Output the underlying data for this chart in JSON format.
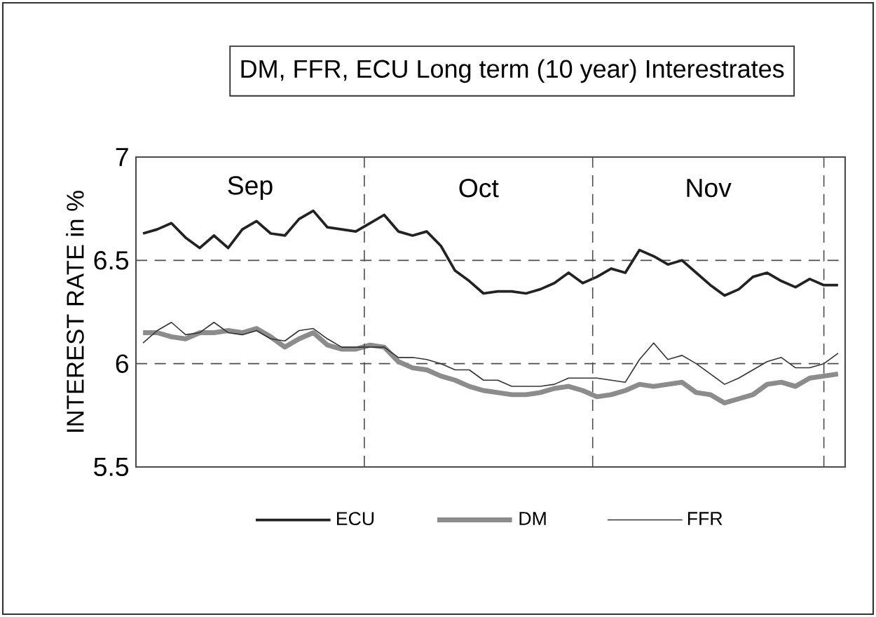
{
  "chart_data": {
    "type": "line",
    "title": "DM, FFR, ECU Long term (10 year) Interestrates",
    "ylabel": "INTEREST RATE in %",
    "categories": [
      null,
      null,
      null,
      null,
      null,
      null,
      null,
      null,
      null,
      null,
      null,
      null,
      null,
      null,
      null,
      null,
      null,
      null,
      null,
      null,
      null,
      null,
      null,
      null,
      null,
      null,
      null,
      null,
      null,
      null,
      null,
      null,
      null,
      null,
      null,
      null,
      null,
      null,
      null,
      null,
      null,
      null,
      null,
      null,
      null,
      null,
      null,
      null,
      null,
      null
    ],
    "ylim": [
      5.5,
      7
    ],
    "yticks": [
      5.5,
      6,
      6.5,
      7
    ],
    "tick_labels": "y",
    "grid": "y",
    "legend": "bottom",
    "annotations": [
      "Sep",
      "Oct",
      "Nov"
    ],
    "series": [
      {
        "name": "ECU",
        "color": "#222222",
        "values": [
          6.63,
          6.65,
          6.68,
          6.61,
          6.56,
          6.62,
          6.56,
          6.65,
          6.69,
          6.63,
          6.62,
          6.7,
          6.74,
          6.66,
          6.65,
          6.64,
          6.68,
          6.72,
          6.64,
          6.62,
          6.64,
          6.57,
          6.45,
          6.4,
          6.34,
          6.35,
          6.35,
          6.34,
          6.36,
          6.39,
          6.44,
          6.39,
          6.42,
          6.46,
          6.44,
          6.55,
          6.52,
          6.48,
          6.5,
          6.44,
          6.38,
          6.33,
          6.36,
          6.42,
          6.44,
          6.4,
          6.37,
          6.41,
          6.38,
          6.38
        ]
      },
      {
        "name": "DM",
        "color": "#8c8c8c",
        "values": [
          6.15,
          6.15,
          6.13,
          6.12,
          6.15,
          6.15,
          6.16,
          6.15,
          6.17,
          6.13,
          6.08,
          6.12,
          6.15,
          6.09,
          6.07,
          6.07,
          6.09,
          6.08,
          6.01,
          5.98,
          5.97,
          5.94,
          5.92,
          5.89,
          5.87,
          5.86,
          5.85,
          5.85,
          5.86,
          5.88,
          5.89,
          5.87,
          5.84,
          5.85,
          5.87,
          5.9,
          5.89,
          5.9,
          5.91,
          5.86,
          5.85,
          5.81,
          5.83,
          5.85,
          5.9,
          5.91,
          5.89,
          5.93,
          5.94,
          5.95
        ]
      },
      {
        "name": "FFR",
        "color": "#333333",
        "values": [
          6.1,
          6.16,
          6.2,
          6.14,
          6.15,
          6.2,
          6.15,
          6.14,
          6.16,
          6.12,
          6.11,
          6.16,
          6.17,
          6.12,
          6.08,
          6.08,
          6.08,
          6.08,
          6.03,
          6.03,
          6.02,
          6.0,
          5.97,
          5.97,
          5.92,
          5.92,
          5.89,
          5.89,
          5.89,
          5.9,
          5.93,
          5.93,
          5.93,
          5.92,
          5.91,
          6.02,
          6.1,
          6.02,
          6.04,
          6.0,
          5.95,
          5.9,
          5.93,
          5.97,
          6.01,
          6.03,
          5.98,
          5.98,
          6.0,
          6.05
        ]
      }
    ]
  }
}
